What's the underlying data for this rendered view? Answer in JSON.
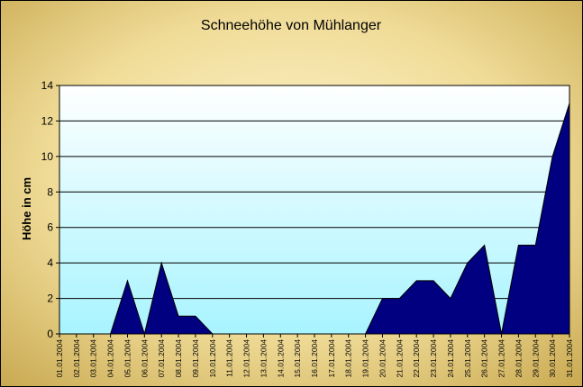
{
  "chart_data": {
    "type": "area",
    "title": "Schneehöhe von Mühlanger",
    "xlabel": "",
    "ylabel": "Höhe in cm",
    "ylim": [
      0,
      14
    ],
    "yticks": [
      0,
      2,
      4,
      6,
      8,
      10,
      12,
      14
    ],
    "grid": true,
    "legend": "none",
    "categories": [
      "01.01.2004",
      "02.01.2004",
      "03.01.2004",
      "04.01.2004",
      "05.01.2004",
      "06.01.2004",
      "07.01.2004",
      "08.01.2004",
      "09.01.2004",
      "10.01.2004",
      "11.01.2004",
      "12.01.2004",
      "13.01.2004",
      "14.01.2004",
      "15.01.2004",
      "16.01.2004",
      "17.01.2004",
      "18.01.2004",
      "19.01.2004",
      "20.01.2004",
      "21.01.2004",
      "22.01.2004",
      "23.01.2004",
      "24.01.2004",
      "25.01.2004",
      "26.01.2004",
      "27.01.2004",
      "28.01.2004",
      "29.01.2004",
      "30.01.2004",
      "31.01.2004"
    ],
    "values": [
      0,
      0,
      0,
      0,
      3,
      0,
      4,
      1,
      1,
      0,
      0,
      0,
      0,
      0,
      0,
      0,
      0,
      0,
      0,
      2,
      2,
      3,
      3,
      2,
      4,
      5,
      0,
      5,
      5,
      10,
      13
    ],
    "colors": {
      "area": "#000080",
      "plot_bg_top": "#ffffff",
      "plot_bg_bottom": "#a8f4ff",
      "frame_outer": "#c8a850",
      "frame_inner": "#fff6d0"
    }
  }
}
